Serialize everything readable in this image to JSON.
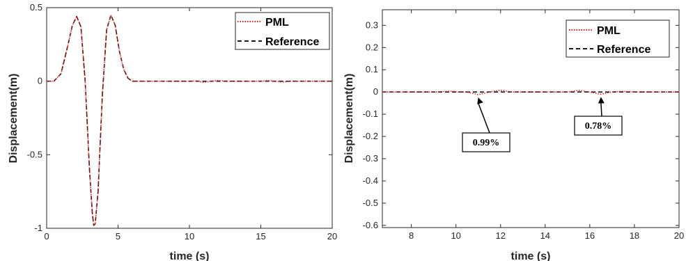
{
  "colors": {
    "pml": "#e8141b",
    "reference": "#1a1a1a",
    "axis": "#262626",
    "grid": "none"
  },
  "chart_data": [
    {
      "type": "line",
      "title": "",
      "xlabel": "time (s)",
      "ylabel": "Displacement(m)",
      "xlim": [
        0,
        20
      ],
      "ylim": [
        -1,
        0.5
      ],
      "xticks": [
        0,
        5,
        10,
        15,
        20
      ],
      "xtick_labels": [
        "0",
        "5",
        "10",
        "15",
        "20"
      ],
      "yticks": [
        -1,
        -0.5,
        0,
        0.5
      ],
      "ytick_labels": [
        "-1",
        "-0.5",
        "0",
        "0.5"
      ],
      "grid": false,
      "legend": {
        "placement": "top-right",
        "entries": [
          "PML",
          "Reference"
        ]
      },
      "series": [
        {
          "name": "PML",
          "style": "dotted",
          "color": "#e8141b",
          "x": [
            0,
            0.5,
            1.0,
            1.5,
            1.8,
            2.1,
            2.4,
            2.7,
            3.0,
            3.2,
            3.3,
            3.4,
            3.6,
            3.9,
            4.2,
            4.5,
            4.8,
            5.1,
            5.4,
            5.7,
            6.0,
            6.5,
            7,
            8,
            9,
            10,
            10.5,
            11,
            11.5,
            12,
            13,
            14,
            15,
            15.5,
            16,
            16.5,
            17,
            18,
            19,
            20
          ],
          "y": [
            0,
            0.0,
            0.05,
            0.25,
            0.38,
            0.44,
            0.37,
            0.0,
            -0.6,
            -0.9,
            -0.98,
            -0.97,
            -0.75,
            -0.1,
            0.35,
            0.45,
            0.38,
            0.2,
            0.08,
            0.02,
            0.0,
            0.0,
            0.0,
            0.0,
            0.0,
            0.0,
            0.003,
            -0.008,
            0.0,
            0.004,
            0.0,
            0.0,
            0.0,
            0.005,
            0.0,
            -0.006,
            0.0,
            0.0,
            0.0,
            0.0
          ]
        },
        {
          "name": "Reference",
          "style": "dashed",
          "color": "#1a1a1a",
          "x": [
            0,
            0.5,
            1.0,
            1.5,
            1.8,
            2.1,
            2.4,
            2.7,
            3.0,
            3.2,
            3.3,
            3.4,
            3.6,
            3.9,
            4.2,
            4.5,
            4.8,
            5.1,
            5.4,
            5.7,
            6.0,
            6.5,
            7,
            8,
            9,
            10,
            11,
            12,
            13,
            14,
            15,
            16,
            17,
            18,
            19,
            20
          ],
          "y": [
            0,
            0.0,
            0.05,
            0.25,
            0.38,
            0.44,
            0.37,
            0.0,
            -0.6,
            -0.9,
            -0.98,
            -0.97,
            -0.75,
            -0.1,
            0.35,
            0.45,
            0.38,
            0.2,
            0.08,
            0.02,
            0.0,
            0.0,
            0.0,
            0.0,
            0.0,
            0.0,
            0.0,
            0.0,
            0.0,
            0.0,
            0.0,
            0.0,
            0.0,
            0.0,
            0.0,
            0.0
          ]
        }
      ]
    },
    {
      "type": "line",
      "title": "",
      "xlabel": "time (s)",
      "ylabel": "Displacement(m)",
      "xlim": [
        6.7,
        20
      ],
      "ylim": [
        -0.61,
        0.37
      ],
      "xticks": [
        8,
        10,
        12,
        14,
        16,
        18,
        20
      ],
      "xtick_labels": [
        "8",
        "10",
        "12",
        "14",
        "16",
        "18",
        "20"
      ],
      "yticks": [
        0.3,
        0.2,
        0.1,
        0,
        -0.1,
        -0.2,
        -0.3,
        -0.4,
        -0.5,
        -0.6
      ],
      "ytick_labels": [
        "0.3",
        "0.2",
        "0.1",
        "0",
        "-0.1",
        "-0.2",
        "-0.3",
        "-0.4",
        "-0.5",
        "-0.6"
      ],
      "grid": false,
      "legend": {
        "placement": "top-right",
        "entries": [
          "PML",
          "Reference"
        ]
      },
      "annotations": [
        {
          "text": "0.99%",
          "arrow_to": [
            11.0,
            -0.012
          ]
        },
        {
          "text": "0.78%",
          "arrow_to": [
            16.5,
            -0.01
          ]
        }
      ],
      "series": [
        {
          "name": "PML",
          "style": "dotted",
          "color": "#e8141b",
          "x": [
            6.7,
            8,
            9,
            9.8,
            10.1,
            10.5,
            11.0,
            11.5,
            12.0,
            12.5,
            13,
            14,
            15,
            15.5,
            16.0,
            16.5,
            17.0,
            17.5,
            18,
            19,
            20
          ],
          "y": [
            0.0,
            0.0,
            0.0,
            0.004,
            0.0,
            0.0,
            -0.012,
            0.0,
            0.008,
            0.0,
            0.0,
            0.0,
            0.0,
            0.007,
            0.0,
            -0.01,
            0.0,
            0.003,
            0.0,
            0.0,
            0.0
          ]
        },
        {
          "name": "Reference",
          "style": "dashed",
          "color": "#1a1a1a",
          "x": [
            6.7,
            8,
            10,
            12,
            14,
            16,
            18,
            20
          ],
          "y": [
            0.0,
            0.0,
            0.0,
            0.0,
            0.0,
            0.0,
            0.0,
            0.0
          ]
        }
      ]
    }
  ]
}
